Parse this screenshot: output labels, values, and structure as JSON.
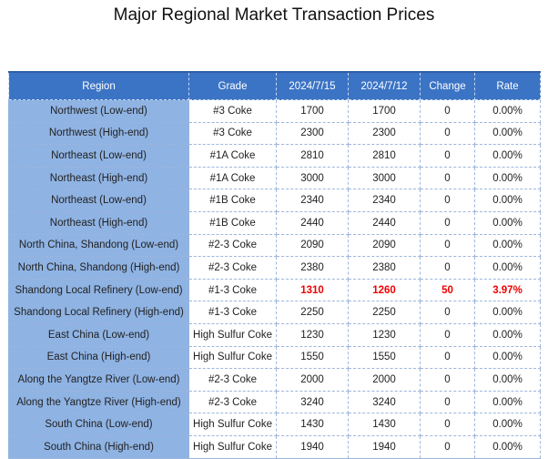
{
  "title": "Major Regional Market Transaction Prices",
  "table": {
    "headers": [
      "Region",
      "Grade",
      "2024/7/15",
      "2024/7/12",
      "Change",
      "Rate"
    ],
    "rows": [
      {
        "region": "Northwest (Low-end)",
        "grade": "#3 Coke",
        "p1": "1700",
        "p2": "1700",
        "change": "0",
        "rate": "0.00%",
        "highlight": false
      },
      {
        "region": "Northwest (High-end)",
        "grade": "#3 Coke",
        "p1": "2300",
        "p2": "2300",
        "change": "0",
        "rate": "0.00%",
        "highlight": false
      },
      {
        "region": "Northeast (Low-end)",
        "grade": "#1A Coke",
        "p1": "2810",
        "p2": "2810",
        "change": "0",
        "rate": "0.00%",
        "highlight": false
      },
      {
        "region": "Northeast (High-end)",
        "grade": "#1A Coke",
        "p1": "3000",
        "p2": "3000",
        "change": "0",
        "rate": "0.00%",
        "highlight": false
      },
      {
        "region": "Northeast (Low-end)",
        "grade": "#1B Coke",
        "p1": "2340",
        "p2": "2340",
        "change": "0",
        "rate": "0.00%",
        "highlight": false
      },
      {
        "region": "Northeast (High-end)",
        "grade": "#1B Coke",
        "p1": "2440",
        "p2": "2440",
        "change": "0",
        "rate": "0.00%",
        "highlight": false
      },
      {
        "region": "North China, Shandong (Low-end)",
        "grade": "#2-3 Coke",
        "p1": "2090",
        "p2": "2090",
        "change": "0",
        "rate": "0.00%",
        "highlight": false
      },
      {
        "region": "North China, Shandong (High-end)",
        "grade": "#2-3 Coke",
        "p1": "2380",
        "p2": "2380",
        "change": "0",
        "rate": "0.00%",
        "highlight": false
      },
      {
        "region": "Shandong Local Refinery (Low-end)",
        "grade": "#1-3 Coke",
        "p1": "1310",
        "p2": "1260",
        "change": "50",
        "rate": "3.97%",
        "highlight": true
      },
      {
        "region": "Shandong Local Refinery (High-end)",
        "grade": "#1-3 Coke",
        "p1": "2250",
        "p2": "2250",
        "change": "0",
        "rate": "0.00%",
        "highlight": false
      },
      {
        "region": "East China (Low-end)",
        "grade": "High Sulfur Coke",
        "p1": "1230",
        "p2": "1230",
        "change": "0",
        "rate": "0.00%",
        "highlight": false
      },
      {
        "region": "East China (High-end)",
        "grade": "High Sulfur Coke",
        "p1": "1550",
        "p2": "1550",
        "change": "0",
        "rate": "0.00%",
        "highlight": false
      },
      {
        "region": "Along the Yangtze River (Low-end)",
        "grade": "#2-3 Coke",
        "p1": "2000",
        "p2": "2000",
        "change": "0",
        "rate": "0.00%",
        "highlight": false
      },
      {
        "region": "Along the Yangtze River (High-end)",
        "grade": "#2-3 Coke",
        "p1": "3240",
        "p2": "3240",
        "change": "0",
        "rate": "0.00%",
        "highlight": false
      },
      {
        "region": "South China (Low-end)",
        "grade": "High Sulfur Coke",
        "p1": "1430",
        "p2": "1430",
        "change": "0",
        "rate": "0.00%",
        "highlight": false
      },
      {
        "region": "South China (High-end)",
        "grade": "High Sulfur Coke",
        "p1": "1940",
        "p2": "1940",
        "change": "0",
        "rate": "0.00%",
        "highlight": false
      }
    ]
  },
  "colors": {
    "header_bg": "#3c74c5",
    "region_bg": "#8fb3e3",
    "highlight_text": "#ee0000"
  }
}
